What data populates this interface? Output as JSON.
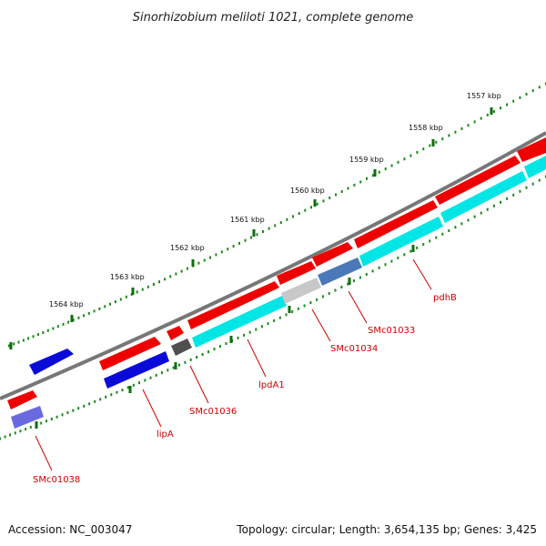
{
  "title": "Sinorhizobium meliloti 1021, complete genome",
  "accession": "Accession: NC_003047",
  "summary": "Topology: circular; Length: 3,654,135 bp; Genes: 3,425",
  "scale_labels": [
    "1557 kbp",
    "1558 kbp",
    "1559 kbp",
    "1560 kbp",
    "1561 kbp",
    "1562 kbp",
    "1563 kbp",
    "1564 kbp"
  ],
  "gene_labels": [
    "pdhB",
    "SMc01033",
    "SMc01034",
    "lpdA1",
    "SMc01036",
    "lipA",
    "SMc01038"
  ],
  "colors": {
    "backbone": "#808080",
    "ticks": "#1a8a1a",
    "cds_red": "#ee0000",
    "cds_blue": "#0a0ad8",
    "cds_cyan": "#00e5e5",
    "cds_steel": "#4a78b8",
    "cds_gray": "#c8c8c8",
    "cds_dark": "#505050",
    "cds_violet": "#6a6ae0",
    "label": "#cc0000"
  }
}
